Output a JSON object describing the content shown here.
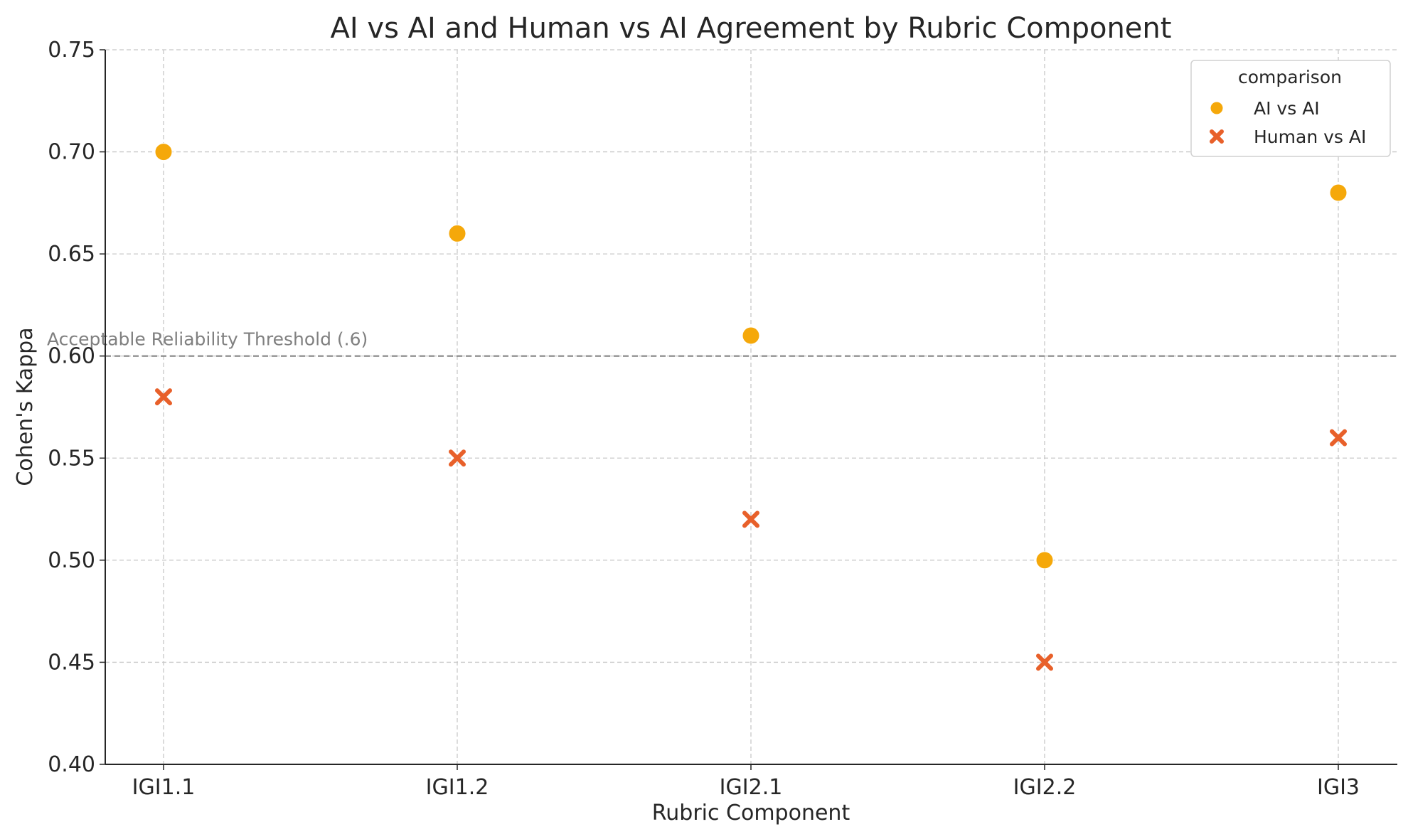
{
  "chart_data": {
    "type": "scatter",
    "title": "AI vs AI and Human vs AI Agreement by Rubric Component",
    "xlabel": "Rubric Component",
    "ylabel": "Cohen's Kappa",
    "categories": [
      "IGI1.1",
      "IGI1.2",
      "IGI2.1",
      "IGI2.2",
      "IGI3"
    ],
    "ylim": [
      0.4,
      0.75
    ],
    "yticks": [
      "0.40",
      "0.45",
      "0.50",
      "0.55",
      "0.60",
      "0.65",
      "0.70",
      "0.75"
    ],
    "grid": true,
    "series": [
      {
        "name": "AI vs AI",
        "marker": "circle",
        "color": "#f5a80a",
        "values": [
          0.7,
          0.66,
          0.61,
          0.5,
          0.68
        ]
      },
      {
        "name": "Human vs AI",
        "marker": "x",
        "color": "#e8602a",
        "values": [
          0.58,
          0.55,
          0.52,
          0.45,
          0.56
        ]
      }
    ],
    "threshold": {
      "value": 0.6,
      "label": "Acceptable Reliability Threshold (.6)",
      "color": "#808080"
    },
    "legend": {
      "title": "comparison",
      "position": "top-right"
    }
  }
}
